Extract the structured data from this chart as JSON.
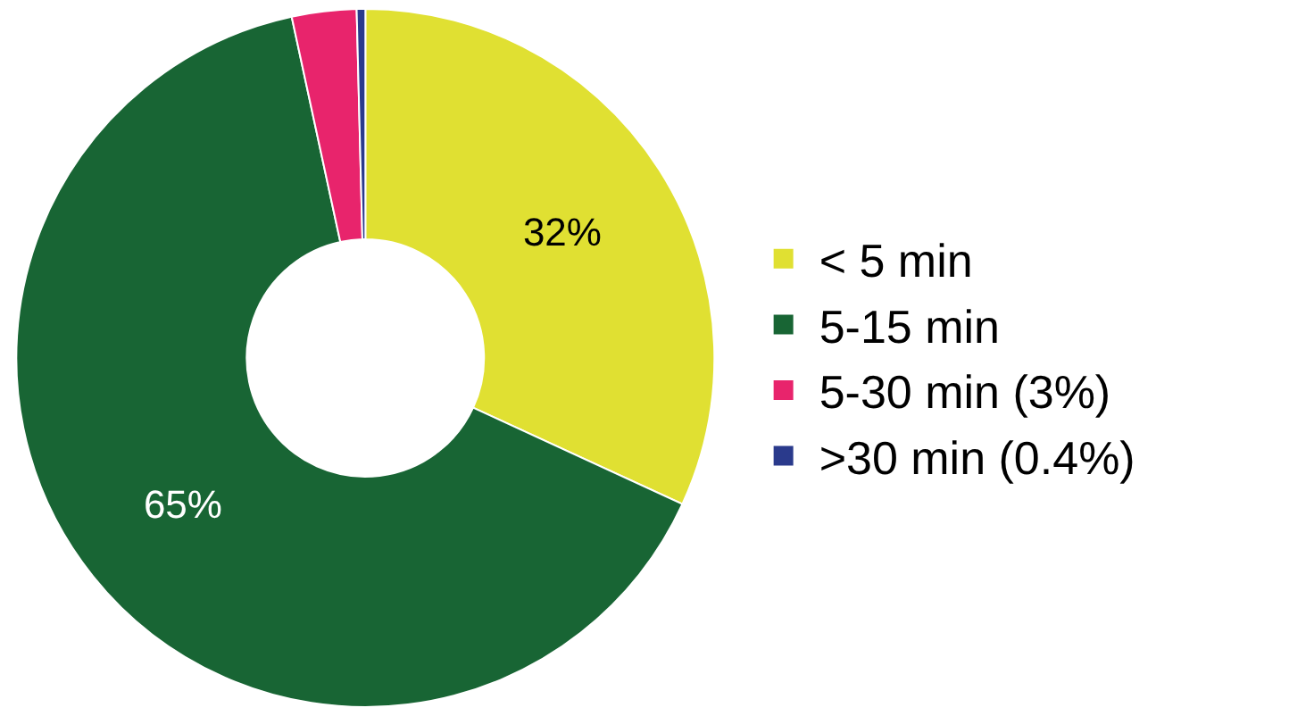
{
  "chart_data": {
    "type": "donut",
    "categories": [
      "< 5 min",
      "5-15 min",
      "5-30 min (3%)",
      ">30 min (0.4%)"
    ],
    "values": [
      32,
      65,
      3,
      0.4
    ],
    "colors": [
      "#e0e032",
      "#186534",
      "#e8246c",
      "#2a3a8c"
    ],
    "value_labels": [
      "32%",
      "65%",
      null,
      null
    ],
    "legend": "right"
  }
}
